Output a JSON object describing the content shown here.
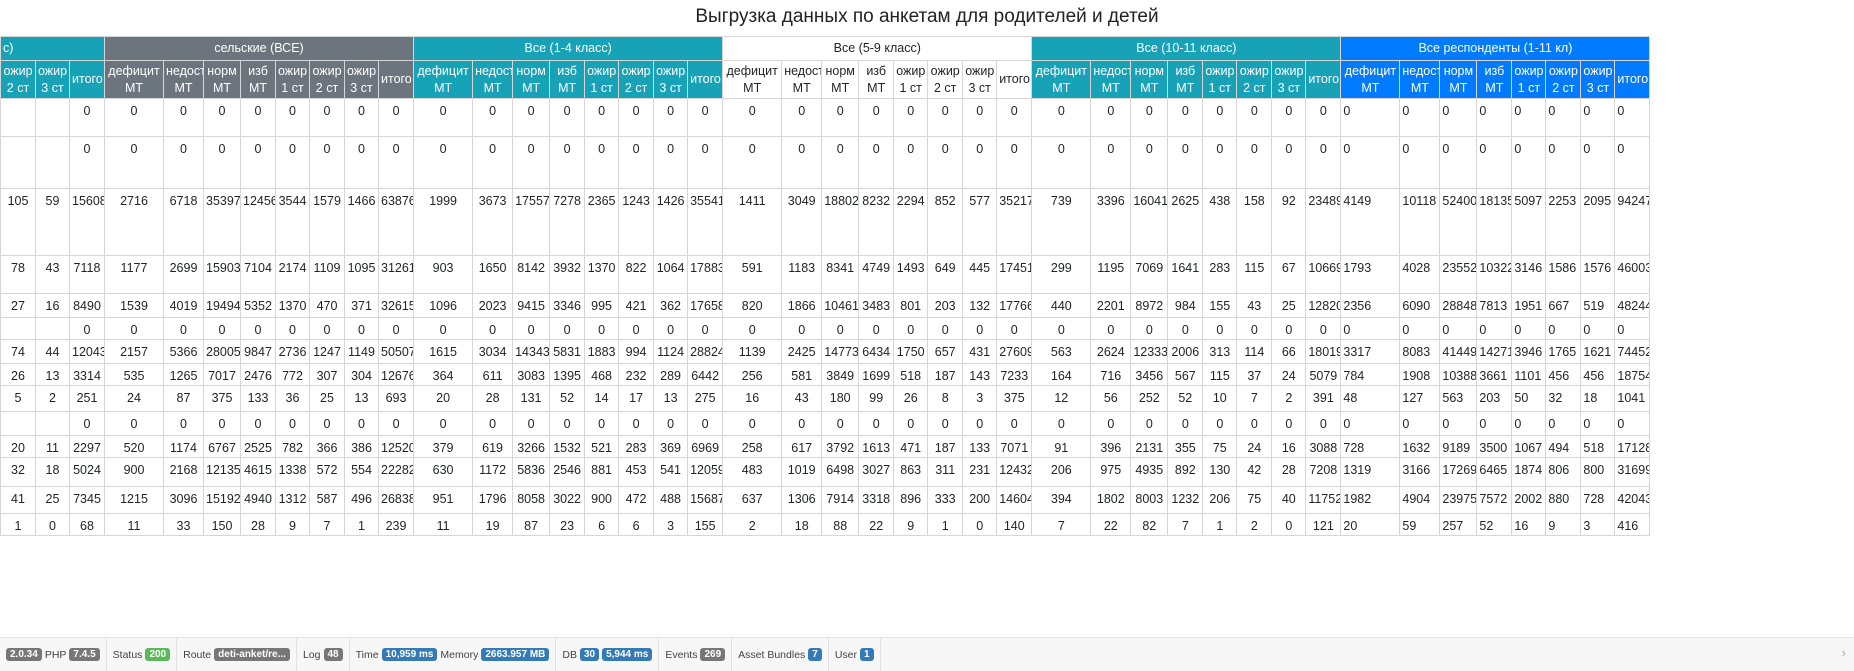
{
  "title": "Выгрузка данных по анкетам для родителей и детей",
  "groups": [
    {
      "label": "с)",
      "span": 3,
      "style": "g-teal"
    },
    {
      "label": "сельские (ВСЕ)",
      "span": 8,
      "style": "g-gray"
    },
    {
      "label": "Все (1-4 класс)",
      "span": 8,
      "style": "g-teal"
    },
    {
      "label": "Все (5-9 класс)",
      "span": 8,
      "style": "g-white"
    },
    {
      "label": "Все (10-11 класс)",
      "span": 8,
      "style": "g-teal"
    },
    {
      "label": "Все респонденты (1-11 кл)",
      "span": 8,
      "style": "g-blue"
    }
  ],
  "columns": [
    {
      "label": "ожир 2 ст",
      "group": 0
    },
    {
      "label": "ожир 3 ст",
      "group": 0
    },
    {
      "label": "итого",
      "group": 0
    },
    {
      "label": "дефицит МТ",
      "group": 1
    },
    {
      "label": "недост МТ",
      "group": 1
    },
    {
      "label": "норм МТ",
      "group": 1
    },
    {
      "label": "изб МТ",
      "group": 1
    },
    {
      "label": "ожир 1 ст",
      "group": 1
    },
    {
      "label": "ожир 2 ст",
      "group": 1
    },
    {
      "label": "ожир 3 ст",
      "group": 1
    },
    {
      "label": "итого",
      "group": 1
    },
    {
      "label": "дефицит МТ",
      "group": 2
    },
    {
      "label": "недост МТ",
      "group": 2
    },
    {
      "label": "норм МТ",
      "group": 2
    },
    {
      "label": "изб МТ",
      "group": 2
    },
    {
      "label": "ожир 1 ст",
      "group": 2
    },
    {
      "label": "ожир 2 ст",
      "group": 2
    },
    {
      "label": "ожир 3 ст",
      "group": 2
    },
    {
      "label": "итого",
      "group": 2
    },
    {
      "label": "дефицит МТ",
      "group": 3
    },
    {
      "label": "недост МТ",
      "group": 3
    },
    {
      "label": "норм МТ",
      "group": 3
    },
    {
      "label": "изб МТ",
      "group": 3
    },
    {
      "label": "ожир 1 ст",
      "group": 3
    },
    {
      "label": "ожир 2 ст",
      "group": 3
    },
    {
      "label": "ожир 3 ст",
      "group": 3
    },
    {
      "label": "итого",
      "group": 3
    },
    {
      "label": "дефицит МТ",
      "group": 4
    },
    {
      "label": "недост МТ",
      "group": 4
    },
    {
      "label": "норм МТ",
      "group": 4
    },
    {
      "label": "изб МТ",
      "group": 4
    },
    {
      "label": "ожир 1 ст",
      "group": 4
    },
    {
      "label": "ожир 2 ст",
      "group": 4
    },
    {
      "label": "ожир 3 ст",
      "group": 4
    },
    {
      "label": "итого",
      "group": 4
    },
    {
      "label": "дефицит МТ",
      "group": 5
    },
    {
      "label": "недост МТ",
      "group": 5
    },
    {
      "label": "норм МТ",
      "group": 5
    },
    {
      "label": "изб МТ",
      "group": 5
    },
    {
      "label": "ожир 1 ст",
      "group": 5
    },
    {
      "label": "ожир 2 ст",
      "group": 5
    },
    {
      "label": "ожир 3 ст",
      "group": 5
    },
    {
      "label": "итого",
      "group": 5
    }
  ],
  "rows": [
    [
      "",
      "",
      "0",
      "0",
      "0",
      "0",
      "0",
      "0",
      "0",
      "0",
      "0",
      "0",
      "0",
      "0",
      "0",
      "0",
      "0",
      "0",
      "0",
      "0",
      "0",
      "0",
      "0",
      "0",
      "0",
      "0",
      "0",
      "0",
      "0",
      "0",
      "0",
      "0",
      "0",
      "0",
      "0",
      "0",
      "0",
      "0",
      "0",
      "0",
      "0",
      "0",
      "0"
    ],
    [
      "",
      "",
      "0",
      "0",
      "0",
      "0",
      "0",
      "0",
      "0",
      "0",
      "0",
      "0",
      "0",
      "0",
      "0",
      "0",
      "0",
      "0",
      "0",
      "0",
      "0",
      "0",
      "0",
      "0",
      "0",
      "0",
      "0",
      "0",
      "0",
      "0",
      "0",
      "0",
      "0",
      "0",
      "0",
      "0",
      "0",
      "0",
      "0",
      "0",
      "0",
      "0",
      "0"
    ],
    [
      "105",
      "59",
      "15608",
      "2716",
      "6718",
      "35397",
      "12456",
      "3544",
      "1579",
      "1466",
      "63876",
      "1999",
      "3673",
      "17557",
      "7278",
      "2365",
      "1243",
      "1426",
      "35541",
      "1411",
      "3049",
      "18802",
      "8232",
      "2294",
      "852",
      "577",
      "35217",
      "739",
      "3396",
      "16041",
      "2625",
      "438",
      "158",
      "92",
      "23489",
      "4149",
      "10118",
      "52400",
      "18135",
      "5097",
      "2253",
      "2095",
      "94247"
    ],
    [
      "78",
      "43",
      "7118",
      "1177",
      "2699",
      "15903",
      "7104",
      "2174",
      "1109",
      "1095",
      "31261",
      "903",
      "1650",
      "8142",
      "3932",
      "1370",
      "822",
      "1064",
      "17883",
      "591",
      "1183",
      "8341",
      "4749",
      "1493",
      "649",
      "445",
      "17451",
      "299",
      "1195",
      "7069",
      "1641",
      "283",
      "115",
      "67",
      "10669",
      "1793",
      "4028",
      "23552",
      "10322",
      "3146",
      "1586",
      "1576",
      "46003"
    ],
    [
      "27",
      "16",
      "8490",
      "1539",
      "4019",
      "19494",
      "5352",
      "1370",
      "470",
      "371",
      "32615",
      "1096",
      "2023",
      "9415",
      "3346",
      "995",
      "421",
      "362",
      "17658",
      "820",
      "1866",
      "10461",
      "3483",
      "801",
      "203",
      "132",
      "17766",
      "440",
      "2201",
      "8972",
      "984",
      "155",
      "43",
      "25",
      "12820",
      "2356",
      "6090",
      "28848",
      "7813",
      "1951",
      "667",
      "519",
      "48244"
    ],
    [
      "",
      "",
      "0",
      "0",
      "0",
      "0",
      "0",
      "0",
      "0",
      "0",
      "0",
      "0",
      "0",
      "0",
      "0",
      "0",
      "0",
      "0",
      "0",
      "0",
      "0",
      "0",
      "0",
      "0",
      "0",
      "0",
      "0",
      "0",
      "0",
      "0",
      "0",
      "0",
      "0",
      "0",
      "0",
      "0",
      "0",
      "0",
      "0",
      "0",
      "0",
      "0",
      "0"
    ],
    [
      "74",
      "44",
      "12043",
      "2157",
      "5366",
      "28005",
      "9847",
      "2736",
      "1247",
      "1149",
      "50507",
      "1615",
      "3034",
      "14343",
      "5831",
      "1883",
      "994",
      "1124",
      "28824",
      "1139",
      "2425",
      "14773",
      "6434",
      "1750",
      "657",
      "431",
      "27609",
      "563",
      "2624",
      "12333",
      "2006",
      "313",
      "114",
      "66",
      "18019",
      "3317",
      "8083",
      "41449",
      "14271",
      "3946",
      "1765",
      "1621",
      "74452"
    ],
    [
      "26",
      "13",
      "3314",
      "535",
      "1265",
      "7017",
      "2476",
      "772",
      "307",
      "304",
      "12676",
      "364",
      "611",
      "3083",
      "1395",
      "468",
      "232",
      "289",
      "6442",
      "256",
      "581",
      "3849",
      "1699",
      "518",
      "187",
      "143",
      "7233",
      "164",
      "716",
      "3456",
      "567",
      "115",
      "37",
      "24",
      "5079",
      "784",
      "1908",
      "10388",
      "3661",
      "1101",
      "456",
      "456",
      "18754"
    ],
    [
      "5",
      "2",
      "251",
      "24",
      "87",
      "375",
      "133",
      "36",
      "25",
      "13",
      "693",
      "20",
      "28",
      "131",
      "52",
      "14",
      "17",
      "13",
      "275",
      "16",
      "43",
      "180",
      "99",
      "26",
      "8",
      "3",
      "375",
      "12",
      "56",
      "252",
      "52",
      "10",
      "7",
      "2",
      "391",
      "48",
      "127",
      "563",
      "203",
      "50",
      "32",
      "18",
      "1041"
    ],
    [
      "",
      "",
      "0",
      "0",
      "0",
      "0",
      "0",
      "0",
      "0",
      "0",
      "0",
      "0",
      "0",
      "0",
      "0",
      "0",
      "0",
      "0",
      "0",
      "0",
      "0",
      "0",
      "0",
      "0",
      "0",
      "0",
      "0",
      "0",
      "0",
      "0",
      "0",
      "0",
      "0",
      "0",
      "0",
      "0",
      "0",
      "0",
      "0",
      "0",
      "0",
      "0",
      "0"
    ],
    [
      "20",
      "11",
      "2297",
      "520",
      "1174",
      "6767",
      "2525",
      "782",
      "366",
      "386",
      "12520",
      "379",
      "619",
      "3266",
      "1532",
      "521",
      "283",
      "369",
      "6969",
      "258",
      "617",
      "3792",
      "1613",
      "471",
      "187",
      "133",
      "7071",
      "91",
      "396",
      "2131",
      "355",
      "75",
      "24",
      "16",
      "3088",
      "728",
      "1632",
      "9189",
      "3500",
      "1067",
      "494",
      "518",
      "17128"
    ],
    [
      "32",
      "18",
      "5024",
      "900",
      "2168",
      "12135",
      "4615",
      "1338",
      "572",
      "554",
      "22282",
      "630",
      "1172",
      "5836",
      "2546",
      "881",
      "453",
      "541",
      "12059",
      "483",
      "1019",
      "6498",
      "3027",
      "863",
      "311",
      "231",
      "12432",
      "206",
      "975",
      "4935",
      "892",
      "130",
      "42",
      "28",
      "7208",
      "1319",
      "3166",
      "17269",
      "6465",
      "1874",
      "806",
      "800",
      "31699"
    ],
    [
      "41",
      "25",
      "7345",
      "1215",
      "3096",
      "15192",
      "4940",
      "1312",
      "587",
      "496",
      "26838",
      "951",
      "1796",
      "8058",
      "3022",
      "900",
      "472",
      "488",
      "15687",
      "637",
      "1306",
      "7914",
      "3318",
      "896",
      "333",
      "200",
      "14604",
      "394",
      "1802",
      "8003",
      "1232",
      "206",
      "75",
      "40",
      "11752",
      "1982",
      "4904",
      "23975",
      "7572",
      "2002",
      "880",
      "728",
      "42043"
    ],
    [
      "1",
      "0",
      "68",
      "11",
      "33",
      "150",
      "28",
      "9",
      "7",
      "1",
      "239",
      "11",
      "19",
      "87",
      "23",
      "6",
      "6",
      "3",
      "155",
      "2",
      "18",
      "88",
      "22",
      "9",
      "1",
      "0",
      "140",
      "7",
      "22",
      "82",
      "7",
      "1",
      "2",
      "0",
      "121",
      "20",
      "59",
      "257",
      "52",
      "16",
      "9",
      "3",
      "416"
    ]
  ],
  "debug_bar": {
    "version": "2.0.34",
    "php_label": "PHP",
    "php_version": "7.4.5",
    "status_label": "Status",
    "status_value": "200",
    "route_label": "Route",
    "route_value": "deti-anket/re...",
    "log_label": "Log",
    "log_value": "48",
    "time_label": "Time",
    "time_value": "10,959 ms",
    "memory_label": "Memory",
    "memory_value": "2663.957 MB",
    "db_label": "DB",
    "db_count": "30",
    "db_time": "5,944 ms",
    "events_label": "Events",
    "events_value": "269",
    "bundles_label": "Asset Bundles",
    "bundles_value": "7",
    "user_label": "User",
    "user_value": "1"
  }
}
